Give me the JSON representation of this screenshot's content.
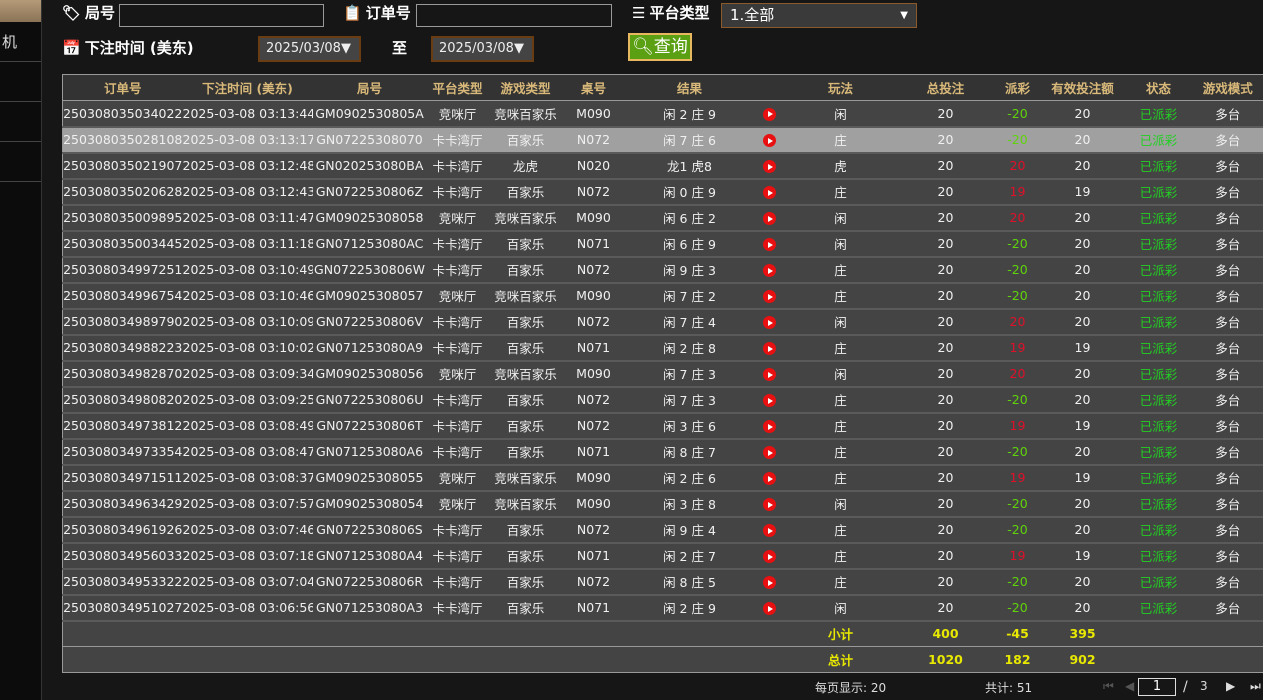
{
  "sidebar": {
    "items": [
      "机",
      "",
      "",
      ""
    ]
  },
  "filters": {
    "round_label": "局号",
    "round_value": "",
    "order_label": "订单号",
    "order_value": "",
    "platform_label": "平台类型",
    "platform_value": "1.全部",
    "time_label": "下注时间 (美东)",
    "date_from": "2025/03/08",
    "to_label": "至",
    "date_to": "2025/03/08",
    "query_label": "查询"
  },
  "columns": [
    "订单号",
    "下注时间 (美东)",
    "局号",
    "平台类型",
    "游戏类型",
    "桌号",
    "结果",
    "",
    "玩法",
    "总投注",
    "派彩",
    "有效投注额",
    "状态",
    "游戏模式"
  ],
  "rows": [
    [
      "250308035034022",
      "2025-03-08 03:13:44",
      "GM0902530805A",
      "竞咪厅",
      "竞咪百家乐",
      "M090",
      "闲 2 庄 9",
      "闲",
      "20",
      "-20",
      "20",
      "已派彩",
      "多台"
    ],
    [
      "250308035028108",
      "2025-03-08 03:13:17",
      "GN07225308070",
      "卡卡湾厅",
      "百家乐",
      "N072",
      "闲 7 庄 6",
      "庄",
      "20",
      "-20",
      "20",
      "已派彩",
      "多台"
    ],
    [
      "250308035021907",
      "2025-03-08 03:12:48",
      "GN020253080BA",
      "卡卡湾厅",
      "龙虎",
      "N020",
      "龙1 虎8",
      "虎",
      "20",
      "20",
      "20",
      "已派彩",
      "多台"
    ],
    [
      "250308035020628",
      "2025-03-08 03:12:43",
      "GN0722530806Z",
      "卡卡湾厅",
      "百家乐",
      "N072",
      "闲 0 庄 9",
      "庄",
      "20",
      "19",
      "19",
      "已派彩",
      "多台"
    ],
    [
      "250308035009895",
      "2025-03-08 03:11:47",
      "GM09025308058",
      "竞咪厅",
      "竞咪百家乐",
      "M090",
      "闲 6 庄 2",
      "闲",
      "20",
      "20",
      "20",
      "已派彩",
      "多台"
    ],
    [
      "250308035003445",
      "2025-03-08 03:11:18",
      "GN071253080AC",
      "卡卡湾厅",
      "百家乐",
      "N071",
      "闲 6 庄 9",
      "闲",
      "20",
      "-20",
      "20",
      "已派彩",
      "多台"
    ],
    [
      "250308034997251",
      "2025-03-08 03:10:49",
      "GN0722530806W",
      "卡卡湾厅",
      "百家乐",
      "N072",
      "闲 9 庄 3",
      "庄",
      "20",
      "-20",
      "20",
      "已派彩",
      "多台"
    ],
    [
      "250308034996754",
      "2025-03-08 03:10:46",
      "GM09025308057",
      "竞咪厅",
      "竞咪百家乐",
      "M090",
      "闲 7 庄 2",
      "庄",
      "20",
      "-20",
      "20",
      "已派彩",
      "多台"
    ],
    [
      "250308034989790",
      "2025-03-08 03:10:09",
      "GN0722530806V",
      "卡卡湾厅",
      "百家乐",
      "N072",
      "闲 7 庄 4",
      "闲",
      "20",
      "20",
      "20",
      "已派彩",
      "多台"
    ],
    [
      "250308034988223",
      "2025-03-08 03:10:02",
      "GN071253080A9",
      "卡卡湾厅",
      "百家乐",
      "N071",
      "闲 2 庄 8",
      "庄",
      "20",
      "19",
      "19",
      "已派彩",
      "多台"
    ],
    [
      "250308034982870",
      "2025-03-08 03:09:34",
      "GM09025308056",
      "竞咪厅",
      "竞咪百家乐",
      "M090",
      "闲 7 庄 3",
      "闲",
      "20",
      "20",
      "20",
      "已派彩",
      "多台"
    ],
    [
      "250308034980820",
      "2025-03-08 03:09:25",
      "GN0722530806U",
      "卡卡湾厅",
      "百家乐",
      "N072",
      "闲 7 庄 3",
      "庄",
      "20",
      "-20",
      "20",
      "已派彩",
      "多台"
    ],
    [
      "250308034973812",
      "2025-03-08 03:08:49",
      "GN0722530806T",
      "卡卡湾厅",
      "百家乐",
      "N072",
      "闲 3 庄 6",
      "庄",
      "20",
      "19",
      "19",
      "已派彩",
      "多台"
    ],
    [
      "250308034973354",
      "2025-03-08 03:08:47",
      "GN071253080A6",
      "卡卡湾厅",
      "百家乐",
      "N071",
      "闲 8 庄 7",
      "庄",
      "20",
      "-20",
      "20",
      "已派彩",
      "多台"
    ],
    [
      "250308034971511",
      "2025-03-08 03:08:37",
      "GM09025308055",
      "竞咪厅",
      "竞咪百家乐",
      "M090",
      "闲 2 庄 6",
      "庄",
      "20",
      "19",
      "19",
      "已派彩",
      "多台"
    ],
    [
      "250308034963429",
      "2025-03-08 03:07:57",
      "GM09025308054",
      "竞咪厅",
      "竞咪百家乐",
      "M090",
      "闲 3 庄 8",
      "闲",
      "20",
      "-20",
      "20",
      "已派彩",
      "多台"
    ],
    [
      "250308034961926",
      "2025-03-08 03:07:46",
      "GN0722530806S",
      "卡卡湾厅",
      "百家乐",
      "N072",
      "闲 9 庄 4",
      "庄",
      "20",
      "-20",
      "20",
      "已派彩",
      "多台"
    ],
    [
      "250308034956033",
      "2025-03-08 03:07:18",
      "GN071253080A4",
      "卡卡湾厅",
      "百家乐",
      "N071",
      "闲 2 庄 7",
      "庄",
      "20",
      "19",
      "19",
      "已派彩",
      "多台"
    ],
    [
      "250308034953322",
      "2025-03-08 03:07:04",
      "GN0722530806R",
      "卡卡湾厅",
      "百家乐",
      "N072",
      "闲 8 庄 5",
      "庄",
      "20",
      "-20",
      "20",
      "已派彩",
      "多台"
    ],
    [
      "250308034951027",
      "2025-03-08 03:06:56",
      "GN071253080A3",
      "卡卡湾厅",
      "百家乐",
      "N071",
      "闲 2 庄 9",
      "闲",
      "20",
      "-20",
      "20",
      "已派彩",
      "多台"
    ]
  ],
  "selected_row": 1,
  "subtotal": {
    "label": "小计",
    "total_bet": "400",
    "payout": "-45",
    "valid_bet": "395"
  },
  "total": {
    "label": "总计",
    "total_bet": "1020",
    "payout": "182",
    "valid_bet": "902"
  },
  "pagination": {
    "per_page": "每页显示: 20",
    "count": "共计: 51",
    "page": "1",
    "sep": "/",
    "pages": "3"
  },
  "colors": {
    "payout_positive": "#e0102a",
    "payout_negative": "#5fd40a",
    "status": "#22d022",
    "header_text": "#d9b97a",
    "query_button": "#5aa012"
  }
}
